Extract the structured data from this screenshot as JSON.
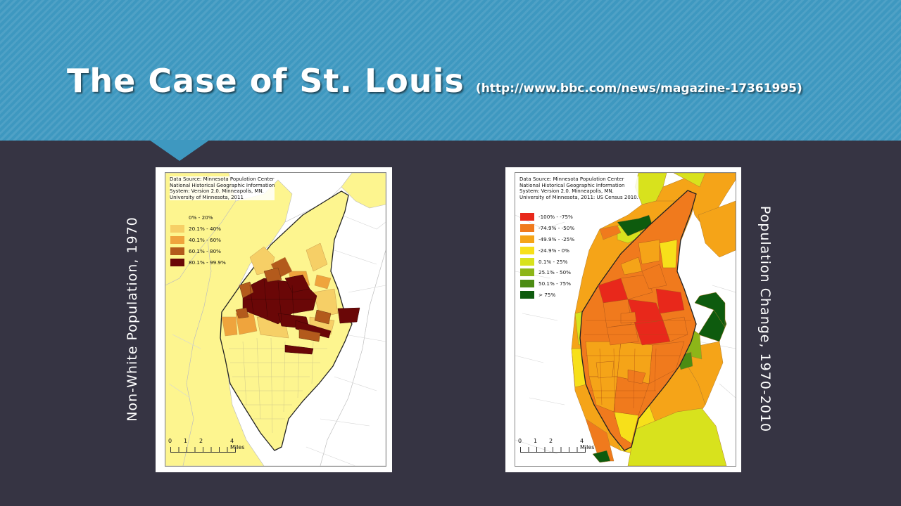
{
  "slide": {
    "title": "The Case of St. Louis",
    "title_url": "(http://www.bbc.com/news/magazine-17361995)",
    "left_label": "Non-White Population, 1970",
    "right_label": "Population Change, 1970-2010",
    "colors": {
      "header": "#3e98c0",
      "background": "#363443"
    }
  },
  "map_left": {
    "source_lines": [
      "Data Source: Minnesota Population Center",
      "National Historical Geographic Information",
      "System: Version 2.0. Minneapolis, MN.",
      "University of Minnesota, 2011"
    ],
    "legend": [
      {
        "label": "0% - 20%",
        "color": "#fdf58f"
      },
      {
        "label": "20.1% - 40%",
        "color": "#f6cf66"
      },
      {
        "label": "40.1% - 60%",
        "color": "#efa43d"
      },
      {
        "label": "60.1% - 80%",
        "color": "#b35a1c"
      },
      {
        "label": "80.1% - 99.9%",
        "color": "#6a0707"
      }
    ],
    "scale": {
      "ticks": [
        "0",
        "1",
        "2",
        "4 Miles"
      ]
    }
  },
  "map_right": {
    "source_lines": [
      "Data Source: Minnesota Population Center",
      "National Historical Geographic Information",
      "System: Version 2.0. Minneapolis, MN.",
      "University of Minnesota, 2011: US Census 2010."
    ],
    "legend": [
      {
        "label": "-100% - -75%",
        "color": "#e8281b"
      },
      {
        "label": "-74.9% - -50%",
        "color": "#f07a1d"
      },
      {
        "label": "-49.9% - -25%",
        "color": "#f5a418"
      },
      {
        "label": "-24.9% - 0%",
        "color": "#f7e01a"
      },
      {
        "label": "0.1% - 25%",
        "color": "#d8e21d"
      },
      {
        "label": "25.1% - 50%",
        "color": "#8db518"
      },
      {
        "label": "50.1% - 75%",
        "color": "#4c8c13"
      },
      {
        "label": "> 75%",
        "color": "#0e5b0e"
      }
    ],
    "scale": {
      "ticks": [
        "0",
        "1",
        "2",
        "4 Miles"
      ]
    }
  }
}
